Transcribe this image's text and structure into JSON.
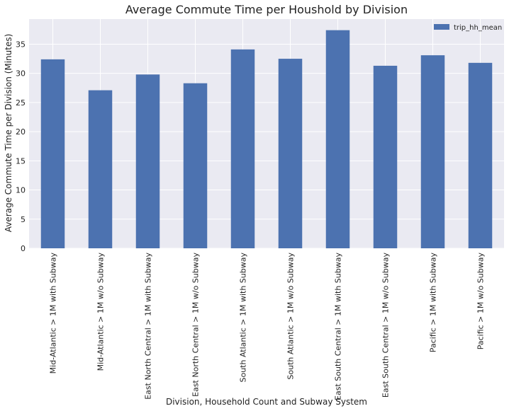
{
  "chart_data": {
    "type": "bar",
    "title": "Average Commute Time per Houshold by Division",
    "xlabel": "Division, Household Count and Subway System",
    "ylabel": "Average Commute Time per Division (Minutes)",
    "categories": [
      "Mid-Atlantic > 1M with Subway",
      "Mid-Atlantic > 1M w/o Subway",
      "East North Central > 1M with Subway",
      "East North Central > 1M w/o Subway",
      "South Atlantic > 1M with Subway",
      "South Atlantic > 1M w/o Subway",
      "East South Central > 1M with Subway",
      "East South Central > 1M w/o Subway",
      "Pacific > 1M with Subway",
      "Pacific > 1M w/o Subway"
    ],
    "series": [
      {
        "name": "trip_hh_mean",
        "values": [
          32.4,
          27.1,
          29.8,
          28.3,
          34.1,
          32.5,
          37.4,
          31.3,
          33.1,
          31.8
        ],
        "color": "#4c72b0"
      }
    ],
    "ylim": [
      0,
      39.3
    ],
    "yticks": [
      0,
      5,
      10,
      15,
      20,
      25,
      30,
      35
    ],
    "grid": true,
    "legend_position": "top-right",
    "colors": {
      "plot_background": "#eaeaf2",
      "grid": "#ffffff",
      "bar": "#4c72b0"
    }
  }
}
